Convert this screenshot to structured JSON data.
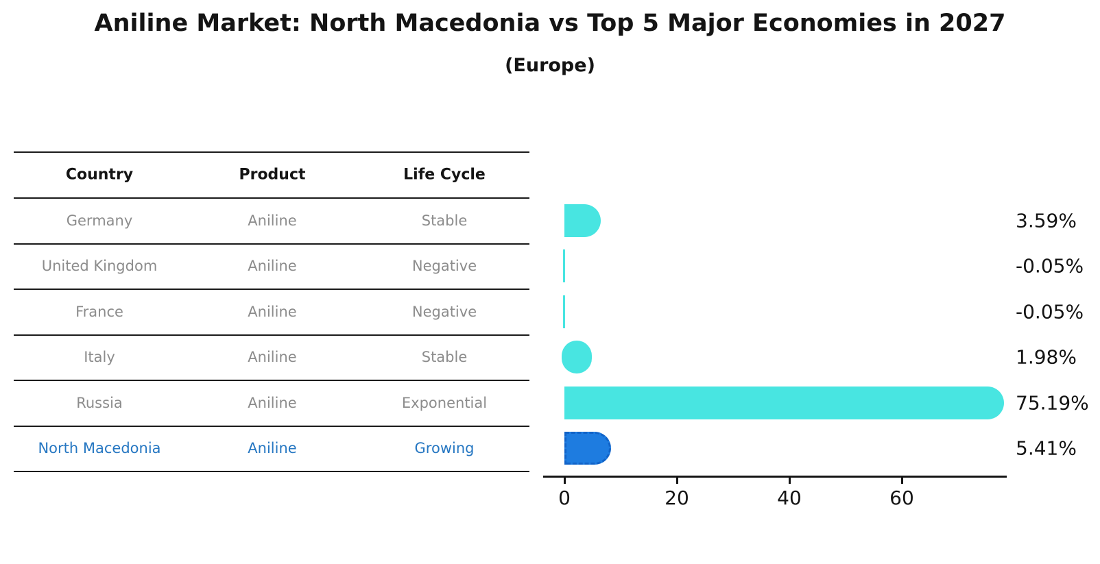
{
  "title": "Aniline Market: North Macedonia vs Top 5 Major Economies in 2027",
  "subtitle": "(Europe)",
  "table": {
    "headers": [
      "Country",
      "Product",
      "Life Cycle"
    ],
    "rows": [
      {
        "country": "Germany",
        "product": "Aniline",
        "life_cycle": "Stable",
        "highlighted": false
      },
      {
        "country": "United Kingdom",
        "product": "Aniline",
        "life_cycle": "Negative",
        "highlighted": false
      },
      {
        "country": "France",
        "product": "Aniline",
        "life_cycle": "Negative",
        "highlighted": false
      },
      {
        "country": "Italy",
        "product": "Aniline",
        "life_cycle": "Stable",
        "highlighted": false
      },
      {
        "country": "Russia",
        "product": "Aniline",
        "life_cycle": "Exponential",
        "highlighted": false
      },
      {
        "country": "North Macedonia",
        "product": "Aniline",
        "life_cycle": "Growing",
        "highlighted": true
      }
    ]
  },
  "chart_data": {
    "type": "bar",
    "orientation": "horizontal",
    "title": "Aniline Market: North Macedonia vs Top 5 Major Economies in 2027",
    "subtitle": "(Europe)",
    "categories": [
      "Germany",
      "United Kingdom",
      "France",
      "Italy",
      "Russia",
      "North Macedonia"
    ],
    "values": [
      3.59,
      -0.05,
      -0.05,
      1.98,
      75.19,
      5.41
    ],
    "value_labels": [
      "3.59%",
      "-0.05%",
      "-0.05%",
      "1.98%",
      "75.19%",
      "5.41%"
    ],
    "xlabel": "",
    "ylabel": "",
    "xticks": [
      0,
      20,
      40,
      60
    ],
    "xlim": [
      -4,
      79
    ],
    "grid": false,
    "legend": false,
    "bar_color": "#48e5e1",
    "highlight_index": 5,
    "highlight_bar_color": "#1e7ce0",
    "highlight_border_color": "#1163c8",
    "highlight_text_color": "#2677c2",
    "text_color": "#141414",
    "muted_text_color": "#8c8c8c"
  }
}
